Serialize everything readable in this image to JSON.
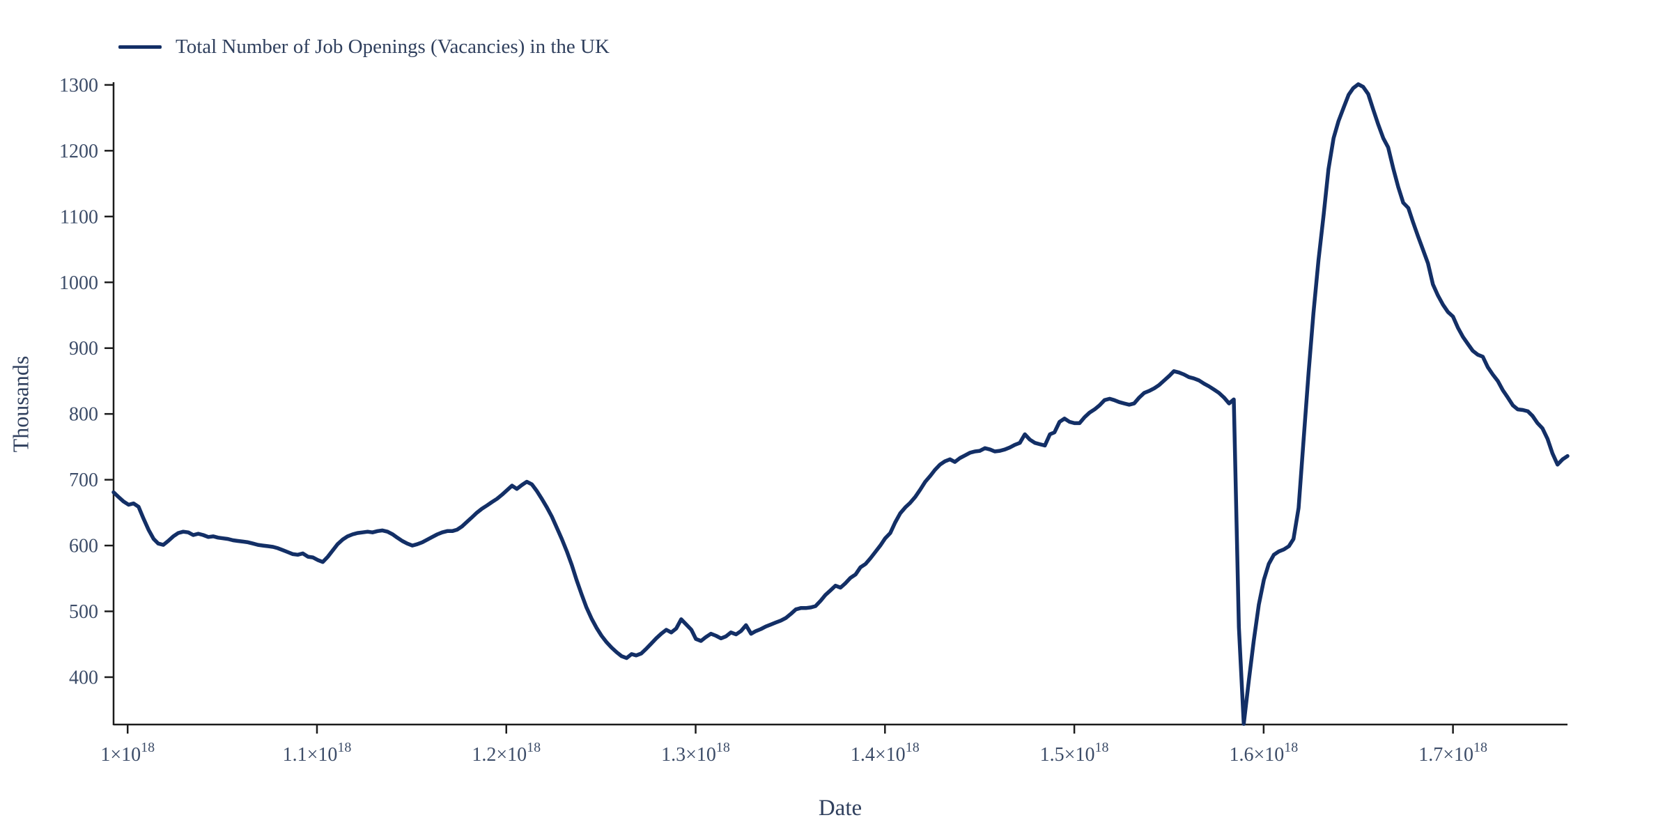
{
  "chart_data": {
    "type": "line",
    "title": "",
    "xlabel": "Date",
    "ylabel": "Thousands",
    "legend_position": "top-left",
    "grid": false,
    "x_start": "2001-06",
    "x_step_months": 1,
    "x_axis_unit": "unix timestamp, nanoseconds",
    "ylim": [
      328,
      1302
    ],
    "y_ticks": [
      400,
      500,
      600,
      700,
      800,
      900,
      1000,
      1100,
      1200,
      1300
    ],
    "x_ticks": [
      {
        "base": "1×10",
        "exp": "18",
        "value_e18": 1.0
      },
      {
        "base": "1.1×10",
        "exp": "18",
        "value_e18": 1.1
      },
      {
        "base": "1.2×10",
        "exp": "18",
        "value_e18": 1.2
      },
      {
        "base": "1.3×10",
        "exp": "18",
        "value_e18": 1.3
      },
      {
        "base": "1.4×10",
        "exp": "18",
        "value_e18": 1.4
      },
      {
        "base": "1.5×10",
        "exp": "18",
        "value_e18": 1.5
      },
      {
        "base": "1.6×10",
        "exp": "18",
        "value_e18": 1.6
      },
      {
        "base": "1.7×10",
        "exp": "18",
        "value_e18": 1.7
      }
    ],
    "series": [
      {
        "name": "Total Number of Job Openings (Vacancies) in the UK",
        "values": [
          681,
          674,
          667,
          662,
          664,
          659,
          641,
          624,
          610,
          603,
          601,
          607,
          614,
          619,
          621,
          620,
          616,
          618,
          616,
          613,
          614,
          612,
          611,
          610,
          608,
          607,
          606,
          605,
          603,
          601,
          600,
          599,
          598,
          596,
          593,
          590,
          587,
          586,
          588,
          583,
          582,
          578,
          575,
          583,
          593,
          602,
          609,
          614,
          617,
          619,
          620,
          621,
          620,
          622,
          623,
          621,
          617,
          612,
          607,
          603,
          600,
          602,
          605,
          609,
          613,
          617,
          620,
          622,
          622,
          624,
          629,
          636,
          643,
          650,
          656,
          661,
          666,
          671,
          677,
          684,
          691,
          686,
          692,
          697,
          693,
          683,
          671,
          658,
          644,
          627,
          610,
          591,
          570,
          548,
          526,
          506,
          489,
          475,
          463,
          453,
          445,
          438,
          432,
          429,
          435,
          433,
          436,
          443,
          451,
          459,
          466,
          472,
          468,
          474,
          488,
          480,
          472,
          458,
          455,
          461,
          466,
          463,
          459,
          462,
          468,
          465,
          470,
          479,
          466,
          470,
          473,
          477,
          480,
          483,
          486,
          490,
          496,
          503,
          505,
          505,
          506,
          508,
          516,
          525,
          532,
          539,
          536,
          543,
          551,
          556,
          567,
          572,
          581,
          590,
          600,
          611,
          619,
          635,
          649,
          658,
          665,
          674,
          685,
          697,
          706,
          715,
          723,
          728,
          731,
          727,
          733,
          737,
          741,
          743,
          744,
          748,
          746,
          743,
          744,
          746,
          749,
          753,
          756,
          769,
          761,
          756,
          754,
          752,
          769,
          772,
          788,
          793,
          788,
          786,
          786,
          795,
          802,
          807,
          813,
          821,
          823,
          821,
          818,
          816,
          814,
          816,
          825,
          832,
          835,
          839,
          844,
          851,
          858,
          865,
          863,
          860,
          856,
          854,
          851,
          846,
          842,
          837,
          832,
          825,
          816,
          822,
          476,
          329,
          395,
          455,
          510,
          548,
          572,
          586,
          591,
          594,
          599,
          610,
          657,
          758,
          862,
          953,
          1034,
          1102,
          1172,
          1219,
          1245,
          1265,
          1285,
          1295,
          1301,
          1297,
          1286,
          1263,
          1240,
          1219,
          1205,
          1173,
          1145,
          1121,
          1113,
          1092,
          1070,
          1050,
          1029,
          997,
          980,
          966,
          955,
          948,
          931,
          917,
          906,
          896,
          890,
          887,
          871,
          860,
          850,
          836,
          825,
          813,
          807,
          806,
          804,
          797,
          786,
          778,
          762,
          740,
          723,
          731,
          736
        ]
      }
    ],
    "colors": {
      "line": "#132f66",
      "tick_text": "#3c4c68",
      "title_text": "#30405e",
      "axis": "#1c1c1c",
      "background": "#ffffff"
    }
  }
}
